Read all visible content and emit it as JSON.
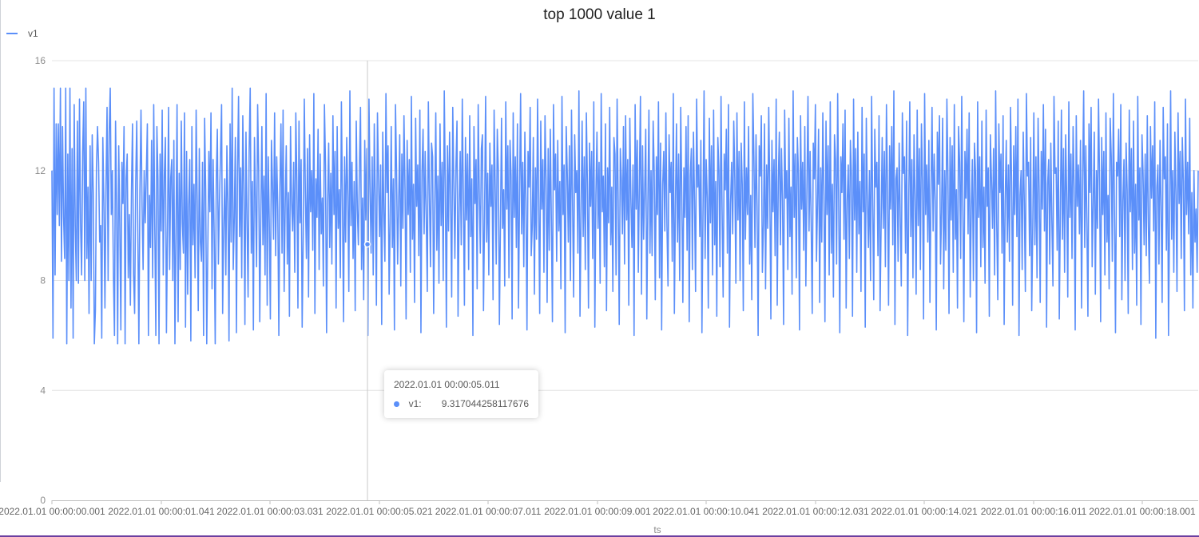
{
  "colors": {
    "series": "#5b8ff9",
    "grid": "#e4e4e4",
    "axis": "#bfbfbf",
    "text": "#8c8c8c"
  },
  "tooltip": {
    "title": "2022.01.01 00:00:05.011",
    "series_name": "v1:",
    "value": "9.317044258117676"
  },
  "chart_data": {
    "type": "line",
    "title": "top 1000 value 1",
    "xlabel": "ts",
    "ylabel": "",
    "ylim": [
      0,
      16
    ],
    "y_ticks": [
      "0",
      "4",
      "8",
      "12",
      "16"
    ],
    "x_ticks": [
      "2022.01.01 00:00:00.001",
      "2022.01.01 00:00:01.041",
      "2022.01.01 00:00:03.031",
      "2022.01.01 00:00:05.021",
      "2022.01.01 00:00:07.011",
      "2022.01.01 00:00:09.001",
      "2022.01.01 00:00:10.041",
      "2022.01.01 00:00:12.031",
      "2022.01.01 00:00:14.021",
      "2022.01.01 00:00:16.011",
      "2022.01.01 00:00:18.001"
    ],
    "grid": true,
    "legend_position": "top-left",
    "series": [
      {
        "name": "v1",
        "values": [
          12.0,
          5.9,
          15.0,
          8.2,
          13.7,
          10.4,
          13.7,
          10.0,
          15.0,
          8.7,
          13.6,
          10.3,
          8.8,
          15.0,
          5.7,
          12.6,
          8.0,
          15.0,
          7.0,
          12.8,
          5.9,
          14.4,
          10.0,
          8.0,
          13.8,
          7.9,
          14.6,
          10.1,
          8.2,
          12.7,
          14.5,
          8.0,
          15.0,
          8.8,
          11.4,
          6.8,
          12.9,
          8.0,
          13.3,
          11.2,
          5.7,
          6.9,
          12.1,
          13.6,
          12.3,
          9.4,
          10.0,
          5.9,
          13.2,
          10.8,
          7.0,
          11.4,
          14.3,
          8.0,
          13.4,
          15.0,
          10.4,
          12.0,
          8.2,
          6.0,
          13.8,
          10.7,
          5.7,
          12.9,
          10.0,
          6.2,
          12.3,
          10.8,
          13.6,
          5.7,
          11.7,
          12.6,
          8.1,
          10.4,
          7.1,
          11.2,
          13.7,
          8.2,
          6.8,
          11.5,
          13.8,
          9.8,
          5.7,
          11.3,
          14.2,
          10.7,
          8.4,
          12.0,
          10.1,
          11.8,
          13.7,
          6.0,
          11.1,
          9.2,
          13.1,
          8.1,
          14.4,
          10.0,
          6.0,
          13.6,
          11.7,
          5.7,
          12.6,
          9.8,
          14.2,
          8.2,
          11.8,
          13.2,
          6.1,
          9.8,
          14.3,
          8.4,
          11.7,
          12.4,
          8.0,
          13.1,
          5.7,
          9.6,
          14.4,
          6.5,
          11.9,
          8.4,
          13.8,
          10.1,
          9.0,
          14.1,
          6.3,
          12.7,
          7.5,
          10.8,
          12.4,
          5.8,
          13.6,
          9.3,
          11.5,
          8.1,
          14.2,
          10.9,
          6.9,
          12.8,
          9.4,
          8.7,
          12.3,
          6.0,
          13.9,
          11.3,
          5.7,
          9.1,
          12.7,
          10.5,
          14.1,
          7.7,
          12.4,
          9.7,
          5.7,
          11.7,
          13.5,
          8.6,
          10.9,
          12.6,
          14.4,
          6.8,
          9.9,
          11.7,
          8.2,
          12.9,
          10.8,
          5.8,
          13.7,
          9.4,
          15.0,
          8.4,
          10.3,
          13.2,
          6.1,
          11.9,
          14.7,
          9.6,
          12.1,
          8.1,
          14.0,
          11.5,
          6.4,
          13.4,
          10.2,
          7.4,
          12.7,
          15.0,
          9.0,
          11.6,
          6.2,
          13.2,
          10.9,
          8.5,
          14.4,
          12.0,
          6.5,
          10.4,
          13.6,
          9.3,
          11.8,
          8.2,
          14.8,
          7.1,
          12.5,
          10.1,
          6.6,
          13.1,
          11.5,
          9.5,
          14.1,
          8.9,
          12.5,
          10.6,
          6.0,
          11.4,
          13.7,
          9.0,
          14.2,
          7.6,
          10.7,
          12.9,
          8.6,
          11.2,
          6.7,
          13.6,
          10.9,
          9.8,
          12.3,
          8.3,
          14.1,
          11.6,
          7.0,
          13.8,
          10.1,
          12.4,
          6.3,
          9.6,
          14.6,
          11.2,
          8.8,
          12.8,
          7.4,
          13.3,
          10.5,
          12.0,
          9.1,
          14.8,
          6.8,
          11.7,
          10.3,
          13.5,
          8.4,
          12.6,
          9.7,
          11.0,
          7.8,
          14.4,
          12.2,
          6.1,
          10.8,
          13.0,
          9.2,
          11.9,
          8.6,
          14.0,
          10.4,
          12.7,
          7.0,
          13.6,
          9.9,
          11.3,
          8.1,
          14.5,
          10.7,
          6.5,
          12.5,
          9.4,
          13.2,
          11.1,
          7.6,
          14.9,
          10.0,
          12.3,
          8.8,
          11.6,
          6.9,
          13.8,
          10.6,
          9.3,
          12.1,
          14.3,
          8.4,
          11.0,
          7.3,
          13.1,
          10.2,
          12.8,
          6.0,
          14.6,
          11.4,
          9.0,
          12.5,
          8.2,
          13.7,
          10.9,
          7.1,
          14.1,
          11.8,
          9.6,
          12.2,
          6.4,
          13.4,
          10.5,
          8.7,
          14.8,
          11.2,
          12.9,
          7.5,
          10.1,
          13.6,
          9.2,
          11.7,
          6.2,
          14.4,
          12.0,
          8.6,
          10.8,
          13.3,
          7.8,
          12.6,
          9.9,
          14.0,
          11.3,
          6.6,
          13.1,
          10.4,
          12.4,
          8.3,
          14.7,
          9.5,
          11.5,
          7.2,
          13.9,
          10.7,
          12.2,
          8.9,
          14.2,
          6.1,
          11.9,
          13.5,
          9.7,
          12.7,
          10.3,
          7.6,
          14.5,
          11.1,
          8.5,
          13.0,
          12.5,
          6.8,
          10.6,
          14.1,
          9.1,
          11.8,
          7.9,
          13.7,
          10.0,
          12.3,
          8.0,
          14.9,
          11.4,
          6.3,
          12.9,
          9.8,
          13.4,
          10.9,
          7.4,
          14.3,
          11.6,
          8.8,
          12.1,
          13.8,
          6.7,
          10.5,
          12.7,
          9.3,
          14.6,
          11.0,
          7.1,
          13.2,
          10.2,
          12.6,
          8.4,
          14.0,
          9.6,
          11.7,
          6.0,
          13.6,
          10.8,
          12.4,
          7.7,
          14.4,
          11.2,
          9.0,
          12.8,
          13.3,
          6.9,
          10.4,
          14.7,
          9.4,
          11.9,
          8.2,
          13.0,
          10.7,
          12.2,
          7.3,
          14.2,
          11.5,
          8.6,
          13.5,
          12.0,
          6.4,
          10.1,
          13.9,
          9.9,
          11.3,
          7.8,
          14.5,
          10.6,
          12.9,
          8.1,
          13.1,
          11.8,
          6.6,
          14.1,
          10.3,
          12.5,
          9.2,
          13.7,
          7.0,
          11.1,
          14.8,
          9.7,
          12.3,
          8.5,
          13.4,
          10.9,
          6.2,
          12.7,
          11.4,
          14.3,
          8.9,
          10.0,
          13.2,
          7.5,
          12.1,
          9.5,
          14.6,
          11.0,
          6.8,
          13.8,
          10.6,
          12.4,
          8.3,
          14.0,
          11.7,
          7.2,
          12.8,
          9.1,
          13.5,
          10.2,
          6.5,
          14.4,
          11.3,
          12.6,
          8.7,
          13.1,
          9.8,
          11.6,
          7.7,
          14.7,
          10.4,
          12.2,
          6.1,
          13.6,
          11.9,
          9.4,
          12.9,
          8.0,
          14.2,
          10.8,
          7.4,
          13.3,
          11.2,
          12.0,
          9.0,
          14.9,
          6.7,
          10.3,
          13.8,
          9.6,
          12.5,
          8.4,
          14.1,
          11.5,
          7.0,
          13.0,
          10.7,
          12.7,
          8.8,
          14.5,
          6.3,
          11.1,
          13.4,
          9.9,
          12.3,
          7.9,
          14.8,
          10.5,
          11.8,
          8.5,
          13.7,
          6.9,
          12.1,
          10.1,
          14.3,
          9.3,
          11.4,
          7.6,
          13.2,
          12.6,
          8.2,
          14.6,
          10.9,
          6.4,
          12.8,
          11.7,
          9.7,
          13.6,
          8.6,
          14.0,
          10.2,
          12.4,
          7.1,
          13.9,
          11.0,
          9.2,
          12.2,
          6.0,
          14.4,
          10.6,
          13.1,
          8.3,
          11.6,
          14.7,
          7.5,
          12.9,
          9.5,
          11.3,
          13.5,
          6.6,
          10.8,
          14.2,
          9.0,
          12.0,
          8.9,
          13.8,
          11.9,
          7.3,
          12.5,
          10.4,
          14.5,
          8.1,
          13.0,
          6.2,
          11.5,
          12.7,
          9.8,
          14.1,
          10.0,
          7.8,
          13.3,
          11.2,
          12.3,
          8.7,
          14.8,
          6.8,
          10.7,
          13.7,
          9.4,
          12.6,
          8.0,
          14.3,
          11.1,
          7.2,
          12.1,
          10.3,
          13.6,
          9.1,
          14.0,
          6.5,
          11.8,
          12.8,
          8.4,
          13.4,
          10.9,
          7.6,
          14.6,
          11.4,
          12.2,
          9.6,
          13.1,
          6.1,
          10.5,
          14.9,
          8.8,
          12.4,
          11.0,
          7.0,
          13.9,
          10.1,
          12.9,
          8.2,
          14.2,
          9.3,
          11.6,
          6.7,
          13.2,
          12.0,
          8.5,
          14.7,
          10.6,
          7.4,
          12.6,
          11.3,
          13.5,
          9.0,
          14.4,
          6.3,
          10.8,
          12.3,
          9.7,
          13.8,
          11.7,
          7.9,
          14.1,
          10.2,
          12.7,
          8.0,
          13.0,
          11.5,
          6.9,
          14.5,
          9.5,
          12.1,
          10.4,
          13.6,
          8.6,
          11.1,
          7.3,
          14.8,
          12.5,
          9.2,
          13.3,
          10.7,
          6.0,
          12.9,
          11.8,
          14.0,
          8.3,
          10.0,
          13.7,
          7.7,
          12.2,
          9.9,
          14.3,
          11.2,
          6.6,
          13.1,
          10.5,
          12.4,
          8.9,
          14.6,
          7.1,
          11.6,
          13.4,
          9.3,
          12.8,
          10.9,
          6.4,
          14.2,
          11.0,
          12.0,
          8.4,
          13.9,
          9.6,
          11.4,
          7.5,
          14.9,
          10.3,
          12.6,
          8.1,
          13.2,
          11.9,
          6.2,
          14.0,
          10.6,
          12.3,
          9.1,
          13.6,
          7.8,
          11.3,
          14.7,
          9.8,
          12.7,
          10.1,
          6.8,
          13.0,
          11.7,
          14.4,
          8.7,
          10.8,
          13.5,
          7.2,
          12.1,
          9.4,
          14.1,
          11.1,
          6.5,
          13.8,
          10.4,
          12.9,
          8.2,
          14.5,
          9.0,
          11.5,
          7.4,
          13.3,
          12.4,
          8.6,
          14.8,
          10.7,
          6.1,
          12.5,
          11.2,
          13.7,
          9.5,
          14.2,
          7.0,
          10.9,
          12.2,
          8.8,
          13.1,
          11.8,
          6.7,
          14.6,
          10.2,
          12.8,
          8.3,
          13.4,
          9.7,
          11.6,
          7.6,
          14.3,
          10.5,
          12.6,
          6.3,
          13.9,
          11.0,
          9.2,
          12.0,
          8.0,
          14.7,
          10.8,
          7.3,
          13.5,
          11.4,
          12.3,
          8.9,
          14.0,
          6.9,
          10.1,
          13.2,
          9.9,
          12.7,
          8.5,
          14.4,
          11.3,
          7.1,
          12.9,
          10.6,
          13.6,
          9.3,
          14.9,
          6.4,
          11.7,
          12.1,
          8.7,
          13.0,
          10.3,
          7.8,
          14.1,
          11.9,
          12.5,
          9.0,
          13.8,
          6.0,
          10.7,
          14.5,
          9.6,
          12.4,
          8.1,
          13.3,
          11.1,
          7.5,
          14.2,
          10.0,
          12.8,
          8.4,
          13.7,
          11.6,
          6.6,
          14.8,
          10.4,
          12.2,
          9.4,
          13.1,
          7.2,
          11.2,
          14.3,
          9.8,
          12.6,
          10.9,
          6.2,
          13.4,
          11.5,
          14.0,
          8.6,
          10.5,
          13.9,
          7.7,
          12.0,
          9.1,
          14.6,
          11.8,
          6.8,
          13.2,
          10.2,
          12.9,
          8.3,
          14.4,
          9.5,
          11.3,
          7.0,
          13.6,
          12.3,
          8.8,
          14.7,
          10.8,
          6.5,
          12.7,
          11.0,
          13.5,
          9.7,
          14.1,
          7.4,
          10.6,
          12.4,
          8.0,
          13.0,
          11.9,
          6.1,
          14.5,
          10.3,
          12.5,
          8.5,
          13.8,
          9.2,
          11.4,
          7.9,
          14.2,
          10.7,
          12.1,
          6.7,
          13.3,
          11.7,
          9.9,
          12.8,
          8.2,
          14.9,
          10.1,
          7.3,
          13.7,
          11.2,
          12.6,
          9.0,
          14.0,
          6.4,
          10.9,
          13.1,
          9.4,
          12.2,
          8.7,
          14.3,
          11.6,
          7.1,
          12.9,
          10.4,
          13.6,
          9.6,
          14.6,
          6.0,
          11.1,
          12.0,
          8.4,
          13.4,
          10.8,
          7.6,
          14.8,
          11.8,
          12.3,
          8.9,
          13.2,
          6.9,
          10.0,
          14.1,
          9.3,
          12.5,
          8.1,
          13.9,
          11.3,
          7.2,
          12.7,
          10.6,
          14.4,
          9.8,
          13.5,
          6.3,
          11.5,
          12.4,
          8.6,
          13.0,
          10.2,
          7.8,
          14.7,
          11.9,
          12.1,
          9.1,
          13.8,
          6.6,
          10.5,
          14.2,
          9.5,
          12.8,
          8.3,
          13.3,
          11.0,
          7.4,
          14.5,
          10.3,
          12.6,
          8.8,
          13.6,
          11.4,
          6.2,
          14.0,
          10.7,
          12.2,
          9.7,
          13.1,
          7.0,
          11.7,
          14.9,
          9.2,
          12.9,
          10.1,
          6.7,
          13.7,
          11.2,
          14.3,
          8.5,
          10.8,
          13.4,
          7.5,
          12.0,
          9.9,
          14.6,
          11.6,
          6.5,
          13.2,
          10.4,
          12.7,
          8.2,
          14.1,
          9.4,
          11.1,
          7.7,
          13.9,
          12.5,
          8.7,
          14.8,
          10.6,
          6.1,
          12.3,
          11.8,
          13.5,
          9.6,
          14.4,
          7.3,
          10.9,
          12.4,
          8.0,
          13.0,
          11.3,
          6.8,
          14.2,
          10.5,
          12.8,
          8.4,
          13.8,
          9.0,
          11.5,
          7.1,
          14.7,
          10.2,
          12.1,
          6.4,
          13.3,
          11.9,
          9.3,
          12.6,
          8.9,
          14.0,
          10.0,
          7.9,
          13.6,
          11.0,
          12.9,
          9.8,
          14.5,
          5.9,
          11.4,
          12.2,
          8.6,
          13.1,
          10.7,
          7.2,
          14.3,
          11.7,
          12.5,
          9.1,
          13.7,
          6.0,
          10.3,
          14.9,
          9.5,
          12.0,
          8.3,
          13.4,
          11.1,
          7.6,
          14.1,
          10.8,
          12.7,
          8.8,
          13.2,
          11.6,
          6.9,
          14.6,
          10.4,
          12.3,
          9.7,
          13.9,
          8.2,
          11.2,
          7.0,
          12.0,
          9.4,
          10.6,
          8.3,
          12.0
        ]
      }
    ]
  }
}
